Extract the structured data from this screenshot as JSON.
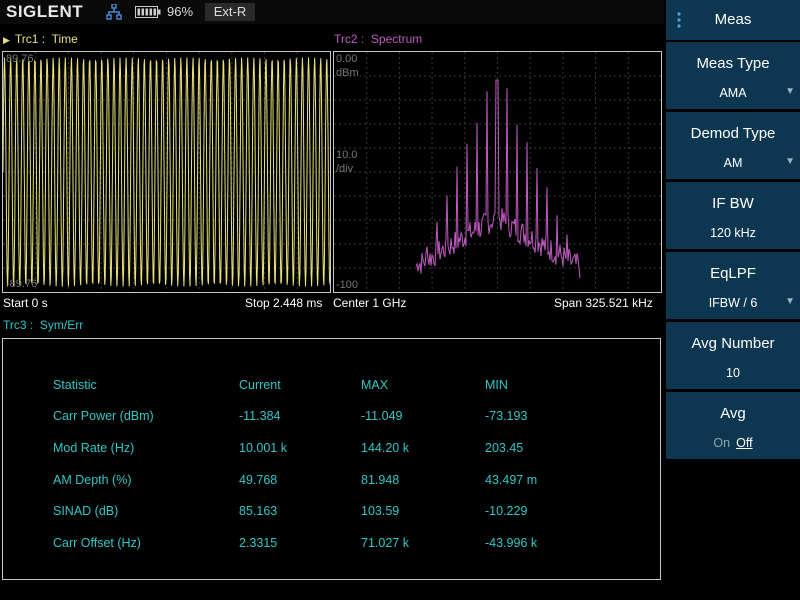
{
  "status_bar": {
    "logo": "SIGLENT",
    "battery_level": "96%",
    "reference": "Ext-R",
    "icons": [
      "network-icon",
      "battery-icon"
    ]
  },
  "traces": {
    "trc1": {
      "prefix": "Trc1 :",
      "name": "Time",
      "color": "#e9e27a"
    },
    "trc2": {
      "prefix": "Trc2 :",
      "name": "Spectrum",
      "color": "#c05ac0"
    },
    "trc3": {
      "prefix": "Trc3 :",
      "name": "Sym/Err",
      "color": "#2fc7c7"
    }
  },
  "time_plot": {
    "top_scale": "89.76",
    "bottom_scale": "-89.76",
    "start": "Start 0 s",
    "stop": "Stop 2.448 ms"
  },
  "spectrum_plot": {
    "ref_level": "0.00",
    "unit": "dBm",
    "div_value": "10.0",
    "div_unit": "/div",
    "bottom_level": "-100",
    "center": "Center 1 GHz",
    "span": "Span 325.521 kHz"
  },
  "statistics": {
    "headers": [
      "Statistic",
      "Current",
      "MAX",
      "MIN"
    ],
    "rows": [
      [
        "Carr Power (dBm)",
        "-11.384",
        "-11.049",
        "-73.193"
      ],
      [
        "Mod Rate (Hz)",
        "10.001 k",
        "144.20 k",
        "203.45"
      ],
      [
        "AM Depth (%)",
        "49.768",
        "81.948",
        "43.497 m"
      ],
      [
        "SINAD (dB)",
        "85.163",
        "103.59",
        "-10.229"
      ],
      [
        "Carr Offset (Hz)",
        "2.3315",
        "71.027 k",
        "-43.996 k"
      ]
    ]
  },
  "menu": {
    "title": "Meas",
    "items": [
      {
        "label": "Meas Type",
        "value": "AMA",
        "has_arrow": true
      },
      {
        "label": "Demod Type",
        "value": "AM",
        "has_arrow": true
      },
      {
        "label": "IF BW",
        "value": "120 kHz",
        "has_arrow": false
      },
      {
        "label": "EqLPF",
        "value": "IFBW / 6",
        "has_arrow": true
      },
      {
        "label": "Avg Number",
        "value": "10",
        "has_arrow": false
      }
    ],
    "avg": {
      "label": "Avg",
      "on": "On",
      "off": "Off"
    }
  }
}
